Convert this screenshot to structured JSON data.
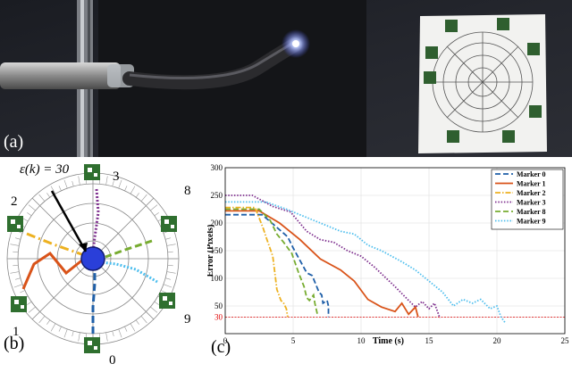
{
  "panel_a": {
    "label": "(a)"
  },
  "panel_b": {
    "label": "(b)",
    "annotation": "ε(k) = 30",
    "marker_labels": [
      "3",
      "8",
      "2",
      "9",
      "1",
      "0"
    ]
  },
  "panel_c": {
    "label": "(c)"
  },
  "colors": {
    "marker0": "#1f5fa8",
    "marker1": "#d95319",
    "marker2": "#edb120",
    "marker3": "#7e2f8e",
    "marker8": "#77ac30",
    "marker9": "#4dbeee",
    "threshold": "#e00000"
  },
  "chart_data": {
    "type": "line",
    "xlabel": "Time (s)",
    "ylabel": "Error (Pixels)",
    "xlim": [
      0,
      25
    ],
    "ylim": [
      0,
      300
    ],
    "xticks": [
      0,
      5,
      10,
      15,
      20,
      25
    ],
    "yticks": [
      30,
      50,
      100,
      150,
      200,
      250,
      300
    ],
    "threshold": 30,
    "legend_position": "top-right",
    "series": [
      {
        "name": "Marker 0",
        "color": "#1f5fa8",
        "dash": "6,3",
        "x": [
          0,
          2.7,
          3.2,
          4.6,
          5.0,
          6.0,
          6.4,
          6.9,
          7.1,
          7.2,
          7.5,
          7.6,
          7.6
        ],
        "y": [
          215,
          215,
          205,
          175,
          155,
          110,
          105,
          75,
          70,
          55,
          60,
          50,
          30
        ]
      },
      {
        "name": "Marker 1",
        "color": "#d95319",
        "dash": "",
        "x": [
          0,
          2.5,
          4.0,
          5.5,
          7.0,
          8.5,
          9.5,
          10.5,
          11.5,
          12.5,
          13.0,
          13.5,
          14.0,
          14.2
        ],
        "y": [
          222,
          222,
          200,
          170,
          135,
          115,
          95,
          62,
          48,
          40,
          55,
          35,
          48,
          30
        ]
      },
      {
        "name": "Marker 2",
        "color": "#edb120",
        "dash": "6,2,1.5,2",
        "x": [
          0,
          2.2,
          2.8,
          3.0,
          3.5,
          3.8,
          4.1,
          4.3,
          4.5,
          4.6
        ],
        "y": [
          228,
          228,
          190,
          175,
          140,
          80,
          60,
          55,
          45,
          30
        ]
      },
      {
        "name": "Marker 3",
        "color": "#7e2f8e",
        "dash": "1.5,1.8",
        "x": [
          0,
          2.0,
          3.5,
          4.8,
          6.0,
          7.0,
          8.0,
          9.0,
          10.0,
          11.0,
          12.5,
          13.5,
          14.0,
          14.5,
          15.0,
          15.4,
          15.8
        ],
        "y": [
          250,
          250,
          230,
          220,
          185,
          170,
          165,
          150,
          140,
          120,
          85,
          60,
          48,
          58,
          45,
          55,
          28
        ]
      },
      {
        "name": "Marker 8",
        "color": "#77ac30",
        "dash": "6,3",
        "x": [
          0,
          2.5,
          3.3,
          3.8,
          4.3,
          4.9,
          5.4,
          5.8,
          6.0,
          6.2,
          6.5,
          6.6,
          6.8
        ],
        "y": [
          225,
          225,
          205,
          180,
          165,
          145,
          110,
          85,
          65,
          60,
          70,
          55,
          33
        ]
      },
      {
        "name": "Marker 9",
        "color": "#4dbeee",
        "dash": "1.5,1.8",
        "x": [
          0,
          3.0,
          4.5,
          6.0,
          7.5,
          8.5,
          9.5,
          10.5,
          11.5,
          13.0,
          14.0,
          15.0,
          16.0,
          16.8,
          17.5,
          18.2,
          18.8,
          19.5,
          20.0,
          20.3,
          20.6
        ],
        "y": [
          238,
          238,
          225,
          210,
          195,
          185,
          180,
          160,
          150,
          130,
          115,
          95,
          75,
          50,
          62,
          55,
          62,
          45,
          50,
          30,
          20
        ]
      }
    ]
  }
}
